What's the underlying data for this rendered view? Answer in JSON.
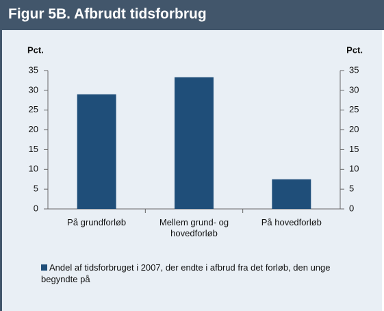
{
  "chart_data": {
    "type": "bar",
    "title": "Figur 5B. Afbrudt tidsforbrug",
    "y_axis_label": "Pct.",
    "y2_axis_label": "Pct.",
    "categories": [
      "På grundforløb",
      "Mellem grund- og hovedforløb",
      "På hovedforløb"
    ],
    "series": [
      {
        "name": "Andel af tidsforbruget i 2007, der endte i afbrud fra det forløb, den unge begyndte på",
        "color": "#1f4e79",
        "values": [
          29,
          33.3,
          7.5
        ]
      }
    ],
    "ylim": [
      0,
      35
    ],
    "yticks": [
      0,
      5,
      10,
      15,
      20,
      25,
      30,
      35
    ],
    "y2lim": [
      0,
      35
    ],
    "y2ticks": [
      0,
      5,
      10,
      15,
      20,
      25,
      30,
      35
    ],
    "grid": false,
    "legend": "bottom"
  }
}
